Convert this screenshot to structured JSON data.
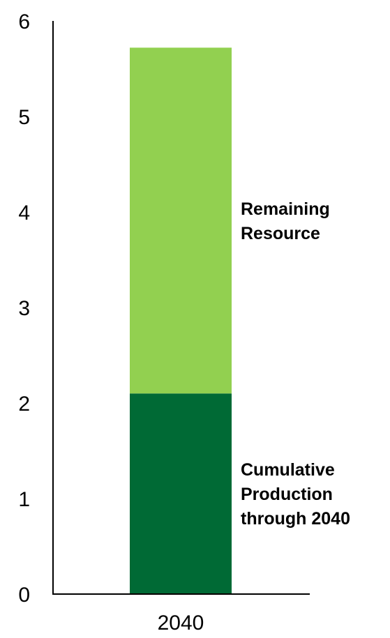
{
  "chart_data": {
    "type": "bar",
    "stacked": true,
    "categories": [
      "2040"
    ],
    "series": [
      {
        "name": "Cumulative Production through 2040",
        "values": [
          2.1
        ],
        "color": "#006a35"
      },
      {
        "name": "Remaining Resource",
        "values": [
          3.62
        ],
        "color": "#92d050"
      }
    ],
    "series_labels": [
      [
        "Cumulative",
        "Production",
        "through 2040"
      ],
      [
        "Remaining",
        "Resource"
      ]
    ],
    "title": "",
    "xlabel": "",
    "ylabel": "",
    "ylim": [
      0,
      6
    ],
    "yticks": [
      "0",
      "1",
      "2",
      "3",
      "4",
      "5",
      "6"
    ],
    "grid": false,
    "legend": "inline-right"
  }
}
